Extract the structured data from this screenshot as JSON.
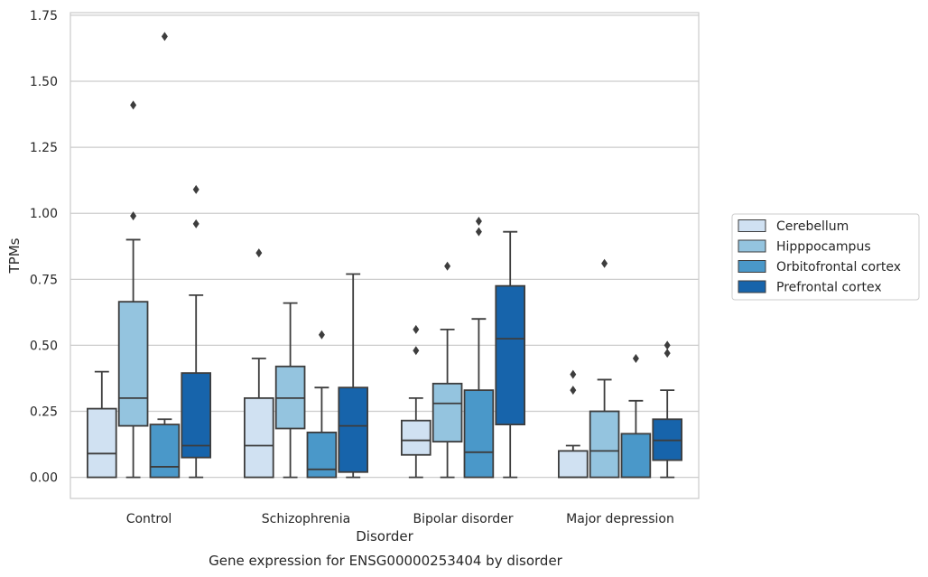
{
  "chart_data": {
    "type": "boxplot",
    "xlabel": "Disorder",
    "ylabel": "TPMs",
    "caption": "Gene expression for ENSG00000253404 by disorder",
    "ylim": [
      -0.08,
      1.76
    ],
    "yticks": [
      "0.00",
      "0.25",
      "0.50",
      "0.75",
      "1.00",
      "1.25",
      "1.50",
      "1.75"
    ],
    "grid": "horizontal",
    "legend_position": "right",
    "categories": [
      "Control",
      "Schizophrenia",
      "Bipolar disorder",
      "Major depression"
    ],
    "series": [
      {
        "name": "Cerebellum",
        "color": "#d0e1f2",
        "boxes": [
          {
            "q1": 0.0,
            "median": 0.09,
            "q3": 0.26,
            "whislo": 0.0,
            "whishi": 0.4,
            "fliers": []
          },
          {
            "q1": 0.0,
            "median": 0.12,
            "q3": 0.3,
            "whislo": 0.0,
            "whishi": 0.45,
            "fliers": [
              0.85
            ]
          },
          {
            "q1": 0.085,
            "median": 0.14,
            "q3": 0.215,
            "whislo": 0.0,
            "whishi": 0.3,
            "fliers": [
              0.48,
              0.56
            ]
          },
          {
            "q1": 0.0,
            "median": 0.0,
            "q3": 0.1,
            "whislo": 0.0,
            "whishi": 0.12,
            "fliers": [
              0.33,
              0.39
            ]
          }
        ]
      },
      {
        "name": "Hipppocampus",
        "color": "#94c4df",
        "boxes": [
          {
            "q1": 0.195,
            "median": 0.3,
            "q3": 0.665,
            "whislo": 0.0,
            "whishi": 0.9,
            "fliers": [
              0.99,
              1.41
            ]
          },
          {
            "q1": 0.185,
            "median": 0.3,
            "q3": 0.42,
            "whislo": 0.0,
            "whishi": 0.66,
            "fliers": []
          },
          {
            "q1": 0.135,
            "median": 0.28,
            "q3": 0.355,
            "whislo": 0.0,
            "whishi": 0.56,
            "fliers": [
              0.8
            ]
          },
          {
            "q1": 0.0,
            "median": 0.1,
            "q3": 0.25,
            "whislo": 0.0,
            "whishi": 0.37,
            "fliers": [
              0.81
            ]
          }
        ]
      },
      {
        "name": "Orbitofrontal cortex",
        "color": "#4a98c9",
        "boxes": [
          {
            "q1": 0.0,
            "median": 0.04,
            "q3": 0.2,
            "whislo": 0.0,
            "whishi": 0.22,
            "fliers": [
              1.67
            ]
          },
          {
            "q1": 0.0,
            "median": 0.03,
            "q3": 0.17,
            "whislo": 0.0,
            "whishi": 0.34,
            "fliers": [
              0.54
            ]
          },
          {
            "q1": 0.0,
            "median": 0.095,
            "q3": 0.33,
            "whislo": 0.0,
            "whishi": 0.6,
            "fliers": [
              0.93,
              0.97
            ]
          },
          {
            "q1": 0.0,
            "median": 0.0,
            "q3": 0.165,
            "whislo": 0.0,
            "whishi": 0.29,
            "fliers": [
              0.45
            ]
          }
        ]
      },
      {
        "name": "Prefrontal cortex",
        "color": "#1764ab",
        "boxes": [
          {
            "q1": 0.075,
            "median": 0.12,
            "q3": 0.395,
            "whislo": 0.0,
            "whishi": 0.69,
            "fliers": [
              0.96,
              1.09
            ]
          },
          {
            "q1": 0.02,
            "median": 0.195,
            "q3": 0.34,
            "whislo": 0.0,
            "whishi": 0.77,
            "fliers": []
          },
          {
            "q1": 0.2,
            "median": 0.525,
            "q3": 0.725,
            "whislo": 0.0,
            "whishi": 0.93,
            "fliers": []
          },
          {
            "q1": 0.065,
            "median": 0.14,
            "q3": 0.22,
            "whislo": 0.0,
            "whishi": 0.33,
            "fliers": [
              0.47,
              0.5
            ]
          }
        ]
      }
    ]
  }
}
